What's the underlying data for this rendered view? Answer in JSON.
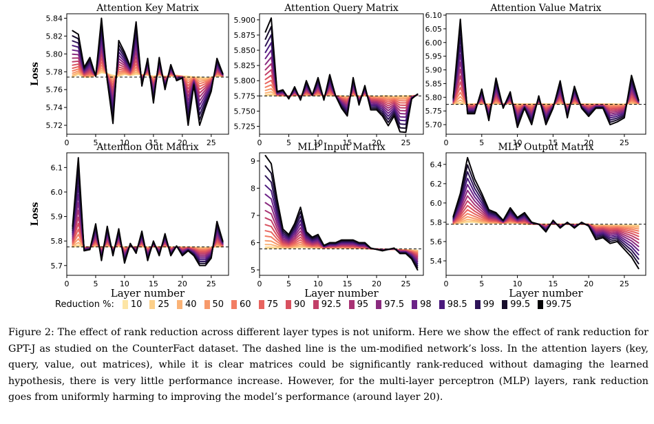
{
  "legend": {
    "title": "Reduction %:",
    "items": [
      {
        "label": "10",
        "color": "#fde5a5"
      },
      {
        "label": "25",
        "color": "#fcd08a"
      },
      {
        "label": "40",
        "color": "#fbb376"
      },
      {
        "label": "50",
        "color": "#f7996a"
      },
      {
        "label": "60",
        "color": "#f27d63"
      },
      {
        "label": "75",
        "color": "#e8645f"
      },
      {
        "label": "90",
        "color": "#d8505f"
      },
      {
        "label": "92.5",
        "color": "#c23f68"
      },
      {
        "label": "95",
        "color": "#a83374"
      },
      {
        "label": "97.5",
        "color": "#8a2a7e"
      },
      {
        "label": "98",
        "color": "#6c2287"
      },
      {
        "label": "98.5",
        "color": "#4b1a7d"
      },
      {
        "label": "99",
        "color": "#2e1458"
      },
      {
        "label": "99.5",
        "color": "#170d2c"
      },
      {
        "label": "99.75",
        "color": "#050306"
      }
    ]
  },
  "caption": "Figure 2: The effect of rank reduction across different layer types is not uniform. Here we show the effect of rank reduction for GPT-J as studied on the CounterFact dataset. The dashed line is the um-modified network’s loss. In the attention layers (key, query, value, out matrices), while it is clear matrices could be significantly rank-reduced without damaging the learned hypothesis, there is very little performance increase. However, for the multi-layer perceptron (MLP) layers, rank reduction goes from uniformly harming to improving the model’s performance (around layer 20).",
  "chart_data": [
    {
      "type": "line",
      "title": "Attention Key Matrix",
      "xlabel": "",
      "ylabel": "Loss",
      "xlim": [
        0,
        28
      ],
      "ylim": [
        5.71,
        5.845
      ],
      "xticks": [
        0,
        5,
        10,
        15,
        20,
        25
      ],
      "xtick_labels": [
        "0",
        "5",
        "10",
        "15",
        "20",
        "25"
      ],
      "yticks": [
        5.72,
        5.74,
        5.76,
        5.78,
        5.8,
        5.82,
        5.84
      ],
      "ytick_labels": [
        "5.72",
        "5.74",
        "5.76",
        "5.78",
        "5.80",
        "5.82",
        "5.84"
      ],
      "baseline": 5.774,
      "x": [
        1,
        2,
        3,
        4,
        5,
        6,
        7,
        8,
        9,
        10,
        11,
        12,
        13,
        14,
        15,
        16,
        17,
        18,
        19,
        20,
        21,
        22,
        23,
        24,
        25,
        26,
        27
      ],
      "series": [
        {
          "name": "10",
          "values": [
            5.774,
            5.777,
            5.774,
            5.774,
            5.776,
            5.779,
            5.778,
            5.776,
            5.775,
            5.777,
            5.776,
            5.777,
            5.777,
            5.776,
            5.775,
            5.776,
            5.775,
            5.775,
            5.776,
            5.775,
            5.775,
            5.774,
            5.774,
            5.773,
            5.774,
            5.775,
            5.775
          ]
        },
        {
          "name": "99.75",
          "values": [
            5.826,
            5.822,
            5.785,
            5.796,
            5.775,
            5.84,
            5.77,
            5.722,
            5.815,
            5.802,
            5.786,
            5.836,
            5.764,
            5.795,
            5.745,
            5.796,
            5.76,
            5.788,
            5.77,
            5.773,
            5.72,
            5.765,
            5.72,
            5.74,
            5.758,
            5.795,
            5.778
          ]
        }
      ]
    },
    {
      "type": "line",
      "title": "Attention Query Matrix",
      "xlabel": "",
      "ylabel": "",
      "xlim": [
        0,
        28
      ],
      "ylim": [
        5.712,
        5.91
      ],
      "xticks": [
        0,
        5,
        10,
        15,
        20,
        25
      ],
      "xtick_labels": [
        "0",
        "5",
        "10",
        "15",
        "20",
        "25"
      ],
      "yticks": [
        5.725,
        5.75,
        5.775,
        5.8,
        5.825,
        5.85,
        5.875,
        5.9
      ],
      "ytick_labels": [
        "5.725",
        "5.750",
        "5.775",
        "5.800",
        "5.825",
        "5.850",
        "5.875",
        "5.900"
      ],
      "baseline": 5.775,
      "x": [
        1,
        2,
        3,
        4,
        5,
        6,
        7,
        8,
        9,
        10,
        11,
        12,
        13,
        14,
        15,
        16,
        17,
        18,
        19,
        20,
        21,
        22,
        23,
        24,
        25,
        26,
        27
      ],
      "series": [
        {
          "name": "10",
          "values": [
            5.775,
            5.776,
            5.775,
            5.775,
            5.775,
            5.775,
            5.776,
            5.775,
            5.776,
            5.775,
            5.776,
            5.775,
            5.775,
            5.775,
            5.774,
            5.775,
            5.775,
            5.775,
            5.775,
            5.774,
            5.775,
            5.775,
            5.774,
            5.775,
            5.775,
            5.775,
            5.776
          ]
        },
        {
          "name": "99.75",
          "values": [
            5.88,
            5.903,
            5.782,
            5.785,
            5.77,
            5.79,
            5.768,
            5.8,
            5.776,
            5.805,
            5.768,
            5.81,
            5.775,
            5.755,
            5.742,
            5.805,
            5.76,
            5.792,
            5.752,
            5.752,
            5.742,
            5.726,
            5.742,
            5.716,
            5.715,
            5.77,
            5.778
          ]
        }
      ]
    },
    {
      "type": "line",
      "title": "Attention Value Matrix",
      "xlabel": "",
      "ylabel": "",
      "xlim": [
        0,
        28
      ],
      "ylim": [
        5.665,
        6.105
      ],
      "xticks": [
        0,
        5,
        10,
        15,
        20,
        25
      ],
      "xtick_labels": [
        "0",
        "5",
        "10",
        "15",
        "20",
        "25"
      ],
      "yticks": [
        5.7,
        5.75,
        5.8,
        5.85,
        5.9,
        5.95,
        6.0,
        6.05,
        6.1
      ],
      "ytick_labels": [
        "5.70",
        "5.75",
        "5.80",
        "5.85",
        "5.90",
        "5.95",
        "6.00",
        "6.05",
        "6.10"
      ],
      "baseline": 5.774,
      "x": [
        1,
        2,
        3,
        4,
        5,
        6,
        7,
        8,
        9,
        10,
        11,
        12,
        13,
        14,
        15,
        16,
        17,
        18,
        19,
        20,
        21,
        22,
        23,
        24,
        25,
        26,
        27
      ],
      "series": [
        {
          "name": "10",
          "values": [
            5.775,
            5.776,
            5.775,
            5.776,
            5.775,
            5.776,
            5.775,
            5.776,
            5.776,
            5.776,
            5.775,
            5.776,
            5.775,
            5.776,
            5.775,
            5.775,
            5.776,
            5.775,
            5.775,
            5.776,
            5.775,
            5.775,
            5.776,
            5.775,
            5.775,
            5.776,
            5.776
          ]
        },
        {
          "name": "99.75",
          "values": [
            5.8,
            6.085,
            5.74,
            5.74,
            5.83,
            5.715,
            5.87,
            5.76,
            5.82,
            5.69,
            5.76,
            5.7,
            5.805,
            5.7,
            5.76,
            5.86,
            5.725,
            5.84,
            5.76,
            5.73,
            5.76,
            5.76,
            5.7,
            5.71,
            5.725,
            5.88,
            5.79
          ]
        }
      ]
    },
    {
      "type": "line",
      "title": "Attention Out Matrix",
      "xlabel": "Layer number",
      "ylabel": "Loss",
      "xlim": [
        0,
        28
      ],
      "ylim": [
        5.66,
        6.16
      ],
      "xticks": [
        0,
        5,
        10,
        15,
        20,
        25
      ],
      "xtick_labels": [
        "0",
        "5",
        "10",
        "15",
        "20",
        "25"
      ],
      "yticks": [
        5.7,
        5.8,
        5.9,
        6.0,
        6.1
      ],
      "ytick_labels": [
        "5.7",
        "5.8",
        "5.9",
        "6.0",
        "6.1"
      ],
      "baseline": 5.776,
      "x": [
        1,
        2,
        3,
        4,
        5,
        6,
        7,
        8,
        9,
        10,
        11,
        12,
        13,
        14,
        15,
        16,
        17,
        18,
        19,
        20,
        21,
        22,
        23,
        24,
        25,
        26,
        27
      ],
      "series": [
        {
          "name": "10",
          "values": [
            5.776,
            5.778,
            5.776,
            5.776,
            5.777,
            5.777,
            5.777,
            5.776,
            5.777,
            5.776,
            5.776,
            5.777,
            5.776,
            5.776,
            5.776,
            5.777,
            5.776,
            5.776,
            5.775,
            5.776,
            5.775,
            5.775,
            5.774,
            5.774,
            5.775,
            5.776,
            5.777
          ]
        },
        {
          "name": "99.75",
          "values": [
            5.86,
            6.14,
            5.76,
            5.765,
            5.87,
            5.72,
            5.86,
            5.74,
            5.85,
            5.71,
            5.79,
            5.75,
            5.84,
            5.72,
            5.8,
            5.74,
            5.83,
            5.74,
            5.78,
            5.74,
            5.76,
            5.74,
            5.7,
            5.7,
            5.73,
            5.88,
            5.8
          ]
        }
      ]
    },
    {
      "type": "line",
      "title": "MLP Input Matrix",
      "xlabel": "Layer number",
      "ylabel": "",
      "xlim": [
        0,
        28
      ],
      "ylim": [
        4.8,
        9.3
      ],
      "xticks": [
        0,
        5,
        10,
        15,
        20,
        25
      ],
      "xtick_labels": [
        "0",
        "5",
        "10",
        "15",
        "20",
        "25"
      ],
      "yticks": [
        5,
        6,
        7,
        8,
        9
      ],
      "ytick_labels": [
        "5",
        "6",
        "7",
        "8",
        "9"
      ],
      "baseline": 5.77,
      "x": [
        1,
        2,
        3,
        4,
        5,
        6,
        7,
        8,
        9,
        10,
        11,
        12,
        13,
        14,
        15,
        16,
        17,
        18,
        19,
        20,
        21,
        22,
        23,
        24,
        25,
        26,
        27
      ],
      "series": [
        {
          "name": "10",
          "values": [
            5.78,
            5.79,
            5.79,
            5.8,
            5.8,
            5.81,
            5.82,
            5.82,
            5.81,
            5.8,
            5.8,
            5.8,
            5.8,
            5.8,
            5.79,
            5.79,
            5.79,
            5.78,
            5.77,
            5.77,
            5.76,
            5.76,
            5.75,
            5.75,
            5.74,
            5.73,
            5.72
          ]
        },
        {
          "name": "99.75",
          "values": [
            9.2,
            8.9,
            7.6,
            6.5,
            6.3,
            6.7,
            7.3,
            6.4,
            6.2,
            6.3,
            5.9,
            6.0,
            6.0,
            6.1,
            6.1,
            6.1,
            6.0,
            6.0,
            5.8,
            5.75,
            5.7,
            5.75,
            5.8,
            5.6,
            5.6,
            5.4,
            5.0
          ]
        }
      ]
    },
    {
      "type": "line",
      "title": "MLP Output Matrix",
      "xlabel": "Layer number",
      "ylabel": "",
      "xlim": [
        0,
        28
      ],
      "ylim": [
        5.25,
        6.52
      ],
      "xticks": [
        0,
        5,
        10,
        15,
        20,
        25
      ],
      "xtick_labels": [
        "0",
        "5",
        "10",
        "15",
        "20",
        "25"
      ],
      "yticks": [
        5.4,
        5.6,
        5.8,
        6.0,
        6.2,
        6.4
      ],
      "ytick_labels": [
        "5.4",
        "5.6",
        "5.8",
        "6.0",
        "6.2",
        "6.4"
      ],
      "baseline": 5.78,
      "x": [
        1,
        2,
        3,
        4,
        5,
        6,
        7,
        8,
        9,
        10,
        11,
        12,
        13,
        14,
        15,
        16,
        17,
        18,
        19,
        20,
        21,
        22,
        23,
        24,
        25,
        26,
        27
      ],
      "series": [
        {
          "name": "10",
          "values": [
            5.78,
            5.79,
            5.8,
            5.8,
            5.79,
            5.79,
            5.79,
            5.79,
            5.79,
            5.79,
            5.78,
            5.78,
            5.78,
            5.78,
            5.78,
            5.78,
            5.78,
            5.78,
            5.78,
            5.78,
            5.77,
            5.77,
            5.77,
            5.77,
            5.77,
            5.77,
            5.77
          ]
        },
        {
          "name": "99.75",
          "values": [
            5.86,
            6.1,
            6.47,
            6.25,
            6.1,
            5.93,
            5.9,
            5.82,
            5.95,
            5.85,
            5.9,
            5.8,
            5.78,
            5.7,
            5.82,
            5.74,
            5.8,
            5.74,
            5.8,
            5.76,
            5.62,
            5.64,
            5.58,
            5.6,
            5.52,
            5.44,
            5.32
          ]
        }
      ]
    }
  ]
}
